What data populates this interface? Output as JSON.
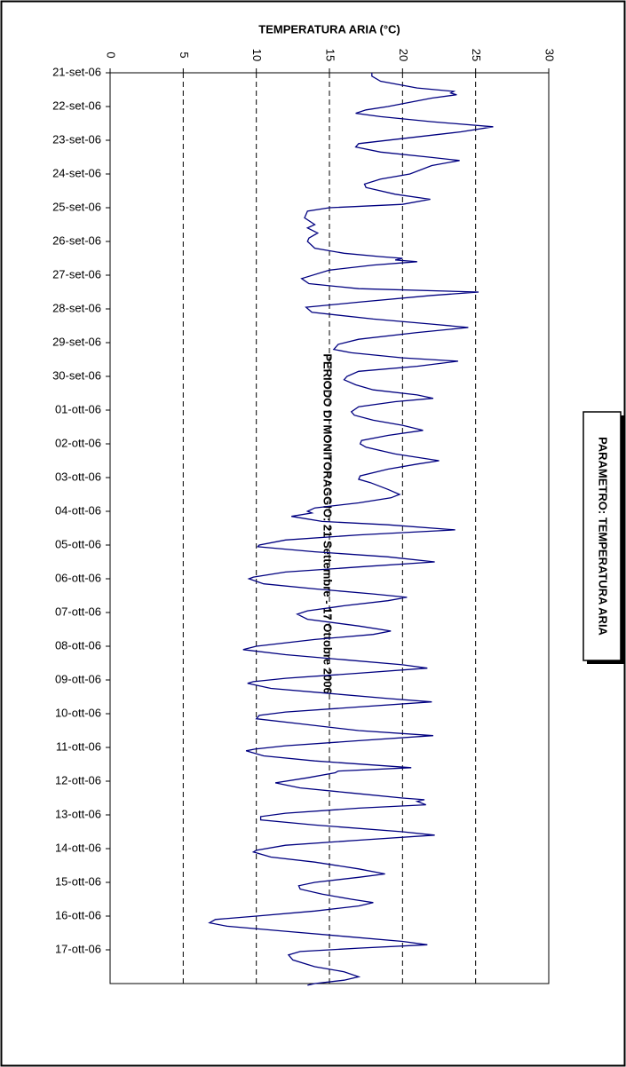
{
  "chart_data": {
    "type": "line",
    "orientation": "rotated",
    "title": "TEMPERATURA ARIA (°C)",
    "x_label": "PERIODO DI MONITORAGGIO: 21 Settembre - 17 Ottobre 2006",
    "annotation": "PARAMETRO: TEMPERATURA ARIA",
    "color": "#000080",
    "grid": true,
    "ylim": [
      0,
      30
    ],
    "yticks": [
      0,
      5,
      10,
      15,
      20,
      25,
      30
    ],
    "xlim": [
      0,
      27
    ],
    "xticks": [
      {
        "value": 0,
        "label": "21-set-06"
      },
      {
        "value": 1,
        "label": "22-set-06"
      },
      {
        "value": 2,
        "label": "23-set-06"
      },
      {
        "value": 3,
        "label": "24-set-06"
      },
      {
        "value": 4,
        "label": "25-set-06"
      },
      {
        "value": 5,
        "label": "26-set-06"
      },
      {
        "value": 6,
        "label": "27-set-06"
      },
      {
        "value": 7,
        "label": "28-set-06"
      },
      {
        "value": 8,
        "label": "29-set-06"
      },
      {
        "value": 9,
        "label": "30-set-06"
      },
      {
        "value": 10,
        "label": "01-ott-06"
      },
      {
        "value": 11,
        "label": "02-ott-06"
      },
      {
        "value": 12,
        "label": "03-ott-06"
      },
      {
        "value": 13,
        "label": "04-ott-06"
      },
      {
        "value": 14,
        "label": "05-ott-06"
      },
      {
        "value": 15,
        "label": "06-ott-06"
      },
      {
        "value": 16,
        "label": "07-ott-06"
      },
      {
        "value": 17,
        "label": "08-ott-06"
      },
      {
        "value": 18,
        "label": "09-ott-06"
      },
      {
        "value": 19,
        "label": "10-ott-06"
      },
      {
        "value": 20,
        "label": "11-ott-06"
      },
      {
        "value": 21,
        "label": "12-ott-06"
      },
      {
        "value": 22,
        "label": "13-ott-06"
      },
      {
        "value": 23,
        "label": "14-ott-06"
      },
      {
        "value": 24,
        "label": "15-ott-06"
      },
      {
        "value": 25,
        "label": "16-ott-06"
      },
      {
        "value": 26,
        "label": "17-ott-06"
      }
    ],
    "x": [
      0,
      0.1,
      0.25,
      0.45,
      0.55,
      0.6,
      0.65,
      0.75,
      1.0,
      1.1,
      1.2,
      1.3,
      1.45,
      1.6,
      1.75,
      1.9,
      2.1,
      2.2,
      2.35,
      2.5,
      2.6,
      2.75,
      3.0,
      3.15,
      3.3,
      3.4,
      3.6,
      3.75,
      3.9,
      4.0,
      4.1,
      4.3,
      4.5,
      4.6,
      4.75,
      4.9,
      5.0,
      5.2,
      5.35,
      5.45,
      5.5,
      5.55,
      5.6,
      5.7,
      5.85,
      6.1,
      6.25,
      6.4,
      6.5,
      6.6,
      6.8,
      6.95,
      7.1,
      7.3,
      7.45,
      7.55,
      7.7,
      7.9,
      8.05,
      8.2,
      8.3,
      8.45,
      8.55,
      8.7,
      8.85,
      9.0,
      9.1,
      9.25,
      9.4,
      9.55,
      9.65,
      9.75,
      9.9,
      10.05,
      10.15,
      10.3,
      10.45,
      10.6,
      10.75,
      10.9,
      11.0,
      11.1,
      11.3,
      11.5,
      11.6,
      11.75,
      11.95,
      12.05,
      12.15,
      12.35,
      12.5,
      12.6,
      12.75,
      12.9,
      13.0,
      13.05,
      13.15,
      13.3,
      13.4,
      13.55,
      13.7,
      13.85,
      14.0,
      14.05,
      14.2,
      14.35,
      14.5,
      14.65,
      14.8,
      14.95,
      15.0,
      15.15,
      15.3,
      15.45,
      15.55,
      15.65,
      15.8,
      15.95,
      16.05,
      16.2,
      16.4,
      16.55,
      16.65,
      16.8,
      17.0,
      17.1,
      17.25,
      17.4,
      17.55,
      17.65,
      17.8,
      17.95,
      18.05,
      18.1,
      18.25,
      18.4,
      18.55,
      18.65,
      18.8,
      18.95,
      19.05,
      19.15,
      19.3,
      19.5,
      19.65,
      19.8,
      19.95,
      20.05,
      20.1,
      20.25,
      20.4,
      20.6,
      20.7,
      20.75,
      20.9,
      21.05,
      21.2,
      21.35,
      21.5,
      21.55,
      21.6,
      21.7,
      21.8,
      21.95,
      22.05,
      22.15,
      22.3,
      22.5,
      22.6,
      22.75,
      22.9,
      23.05,
      23.1,
      23.25,
      23.4,
      23.6,
      23.75,
      23.85,
      24.0,
      24.1,
      24.2,
      24.35,
      24.5,
      24.6,
      24.7,
      24.85,
      25.0,
      25.1,
      25.2,
      25.3,
      25.45,
      25.6,
      25.75,
      25.85,
      25.95,
      26.05,
      26.15,
      26.3,
      26.5,
      26.65,
      26.8,
      26.9,
      27.0,
      27.05
    ],
    "values": [
      17.9,
      17.9,
      18.5,
      21,
      23.5,
      23.3,
      23.7,
      22,
      19,
      17.5,
      16.8,
      18.5,
      22,
      26.2,
      24,
      21,
      17,
      16.8,
      18.5,
      21.8,
      23.9,
      22,
      20.5,
      18.5,
      17.4,
      17.5,
      19.5,
      21.9,
      20,
      15,
      13.5,
      13.3,
      14,
      13.5,
      14.2,
      13.6,
      13.5,
      14,
      16,
      18.5,
      20,
      19.5,
      21,
      18,
      15,
      13.1,
      13.6,
      17,
      25.2,
      22,
      17,
      13.4,
      13.8,
      18,
      22,
      24.5,
      21,
      17,
      15.6,
      15.3,
      16.5,
      20,
      23.8,
      21,
      17,
      16.2,
      16,
      16.8,
      18,
      21,
      22.1,
      19.5,
      17,
      16.5,
      16.7,
      18,
      20,
      21.4,
      19,
      17.2,
      17.1,
      17.5,
      19.5,
      22.5,
      21,
      19,
      17.1,
      17,
      17.8,
      19,
      19.8,
      19.2,
      17,
      14,
      13.5,
      13.8,
      12.4,
      14.5,
      19,
      23.6,
      17,
      12,
      10.2,
      10.1,
      14,
      19,
      22.2,
      17,
      12,
      9.8,
      9.5,
      10.5,
      14,
      18,
      20.3,
      19,
      16,
      13.5,
      12.8,
      13.5,
      17,
      19.2,
      18,
      14,
      10,
      9.1,
      12,
      16,
      20,
      21.7,
      17,
      12,
      9.8,
      9.4,
      11,
      15,
      19,
      22,
      17,
      12,
      10.2,
      10,
      13,
      17,
      22.1,
      17,
      12,
      9.9,
      9.3,
      10.5,
      14,
      20.6,
      15.6,
      15.4,
      13.5,
      11.3,
      13,
      16.5,
      20,
      21.5,
      21,
      21.6,
      17,
      12,
      10.3,
      10.3,
      14,
      20,
      22.2,
      17,
      12,
      10,
      9.8,
      11,
      14,
      17,
      18.8,
      17,
      14,
      12.9,
      13,
      14.5,
      16.5,
      18,
      17,
      14,
      10,
      7.2,
      6.8,
      8,
      12,
      16,
      20,
      21.7,
      17,
      13,
      12.2,
      12.5,
      14,
      16,
      17,
      16,
      14,
      13.5
    ]
  }
}
